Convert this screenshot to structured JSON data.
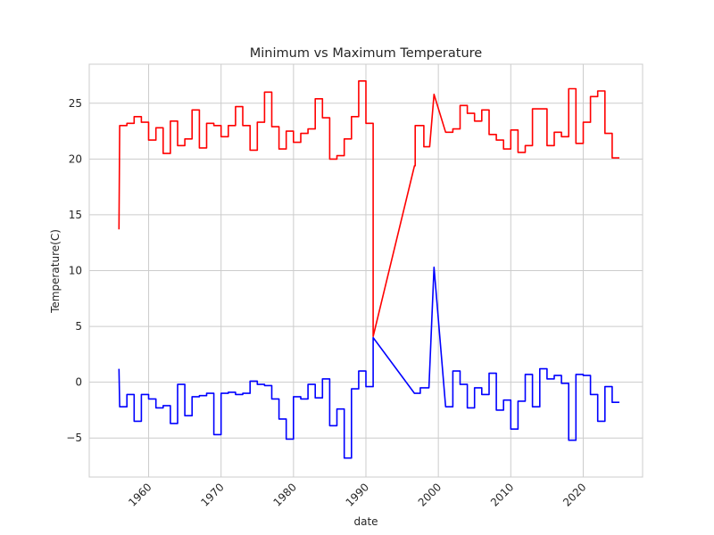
{
  "chart_data": {
    "type": "line",
    "title": "Minimum vs Maximum Temperature",
    "xlabel": "date",
    "ylabel": "Temperature(C)",
    "xlim": [
      1951.8,
      1928.2
    ],
    "ylim": [
      -8.5,
      28.5
    ],
    "xticks": [
      1960,
      1970,
      1980,
      1990,
      2000,
      2010,
      2020
    ],
    "xtick_labels": [
      "1960",
      "1970",
      "1980",
      "1990",
      "2000",
      "2010",
      "2020"
    ],
    "yticks": [
      -5,
      0,
      5,
      10,
      15,
      20,
      25
    ],
    "ytick_labels": [
      "−5",
      "0",
      "5",
      "10",
      "15",
      "20",
      "25"
    ],
    "grid": true,
    "colors": {
      "max": "#ff0000",
      "min": "#0000ff",
      "grid": "#cccccc"
    },
    "series": [
      {
        "color": "#ff0000",
        "points": [
          [
            1955.9,
            13.7
          ],
          [
            1956.0,
            23.0
          ],
          [
            1957.0,
            23.0
          ],
          [
            1957.0,
            23.2
          ],
          [
            1958.0,
            23.2
          ],
          [
            1958.0,
            23.8
          ],
          [
            1959.0,
            23.8
          ],
          [
            1959.0,
            23.3
          ],
          [
            1960.0,
            23.3
          ],
          [
            1960.0,
            21.7
          ],
          [
            1961.0,
            21.7
          ],
          [
            1961.0,
            22.8
          ],
          [
            1962.0,
            22.8
          ],
          [
            1962.0,
            20.5
          ],
          [
            1963.0,
            20.5
          ],
          [
            1963.0,
            23.4
          ],
          [
            1964.0,
            23.4
          ],
          [
            1964.0,
            21.2
          ],
          [
            1965.0,
            21.2
          ],
          [
            1965.0,
            21.8
          ],
          [
            1966.0,
            21.8
          ],
          [
            1966.0,
            24.4
          ],
          [
            1967.0,
            24.4
          ],
          [
            1967.0,
            21.0
          ],
          [
            1968.0,
            21.0
          ],
          [
            1968.0,
            23.2
          ],
          [
            1969.0,
            23.2
          ],
          [
            1969.0,
            23.0
          ],
          [
            1970.0,
            23.0
          ],
          [
            1970.0,
            22.0
          ],
          [
            1971.0,
            22.0
          ],
          [
            1971.0,
            23.0
          ],
          [
            1972.0,
            23.0
          ],
          [
            1972.0,
            24.7
          ],
          [
            1973.0,
            24.7
          ],
          [
            1973.0,
            23.0
          ],
          [
            1974.0,
            23.0
          ],
          [
            1974.0,
            20.8
          ],
          [
            1975.0,
            20.8
          ],
          [
            1975.0,
            23.3
          ],
          [
            1976.0,
            23.3
          ],
          [
            1976.0,
            26.0
          ],
          [
            1977.0,
            26.0
          ],
          [
            1977.0,
            22.9
          ],
          [
            1978.0,
            22.9
          ],
          [
            1978.0,
            20.9
          ],
          [
            1979.0,
            20.9
          ],
          [
            1979.0,
            22.5
          ],
          [
            1980.0,
            22.5
          ],
          [
            1980.0,
            21.5
          ],
          [
            1981.0,
            21.5
          ],
          [
            1981.0,
            22.3
          ],
          [
            1982.0,
            22.3
          ],
          [
            1982.0,
            22.7
          ],
          [
            1983.0,
            22.7
          ],
          [
            1983.0,
            25.4
          ],
          [
            1984.0,
            25.4
          ],
          [
            1984.0,
            23.7
          ],
          [
            1985.0,
            23.7
          ],
          [
            1985.0,
            20.0
          ],
          [
            1986.0,
            20.0
          ],
          [
            1986.0,
            20.3
          ],
          [
            1987.0,
            20.3
          ],
          [
            1987.0,
            21.8
          ],
          [
            1988.0,
            21.8
          ],
          [
            1988.0,
            23.8
          ],
          [
            1989.0,
            23.8
          ],
          [
            1989.0,
            27.0
          ],
          [
            1990.0,
            27.0
          ],
          [
            1990.0,
            23.2
          ],
          [
            1991.0,
            23.2
          ],
          [
            1991.0,
            4.1
          ],
          [
            1996.7,
            19.4
          ],
          [
            1996.8,
            19.4
          ],
          [
            1996.8,
            23.0
          ],
          [
            1998.0,
            23.0
          ],
          [
            1998.0,
            21.1
          ],
          [
            1998.8,
            21.1
          ],
          [
            1999.4,
            25.8
          ],
          [
            2001.0,
            22.4
          ],
          [
            2002.0,
            22.4
          ],
          [
            2002.0,
            22.7
          ],
          [
            2003.0,
            22.7
          ],
          [
            2003.0,
            24.8
          ],
          [
            2004.0,
            24.8
          ],
          [
            2004.0,
            24.1
          ],
          [
            2005.0,
            24.1
          ],
          [
            2005.0,
            23.4
          ],
          [
            2006.0,
            23.4
          ],
          [
            2006.0,
            24.4
          ],
          [
            2007.0,
            24.4
          ],
          [
            2007.0,
            22.2
          ],
          [
            2008.0,
            22.2
          ],
          [
            2008.0,
            21.7
          ],
          [
            2009.0,
            21.7
          ],
          [
            2009.0,
            20.9
          ],
          [
            2010.0,
            20.9
          ],
          [
            2010.0,
            22.6
          ],
          [
            2011.0,
            22.6
          ],
          [
            2011.0,
            20.6
          ],
          [
            2012.0,
            20.6
          ],
          [
            2012.0,
            21.2
          ],
          [
            2013.0,
            21.2
          ],
          [
            2013.0,
            24.5
          ],
          [
            2015.0,
            24.5
          ],
          [
            2015.0,
            21.2
          ],
          [
            2016.0,
            21.2
          ],
          [
            2016.0,
            22.4
          ],
          [
            2017.0,
            22.4
          ],
          [
            2017.0,
            22.0
          ],
          [
            2018.0,
            22.0
          ],
          [
            2018.0,
            26.3
          ],
          [
            2019.0,
            26.3
          ],
          [
            2019.0,
            21.4
          ],
          [
            2020.0,
            21.4
          ],
          [
            2020.0,
            23.3
          ],
          [
            2021.0,
            23.3
          ],
          [
            2021.0,
            25.6
          ],
          [
            2022.0,
            25.6
          ],
          [
            2022.0,
            26.1
          ],
          [
            2023.0,
            26.1
          ],
          [
            2023.0,
            22.3
          ],
          [
            2024.0,
            22.3
          ],
          [
            2024.0,
            20.1
          ],
          [
            2025.0,
            20.1
          ]
        ]
      },
      {
        "color": "#0000ff",
        "points": [
          [
            1955.9,
            1.2
          ],
          [
            1956.0,
            -2.2
          ],
          [
            1957.0,
            -2.2
          ],
          [
            1957.0,
            -1.1
          ],
          [
            1958.0,
            -1.1
          ],
          [
            1958.0,
            -3.5
          ],
          [
            1959.0,
            -3.5
          ],
          [
            1959.0,
            -1.1
          ],
          [
            1960.0,
            -1.1
          ],
          [
            1960.0,
            -1.5
          ],
          [
            1961.0,
            -1.5
          ],
          [
            1961.0,
            -2.3
          ],
          [
            1962.0,
            -2.3
          ],
          [
            1962.0,
            -2.1
          ],
          [
            1963.0,
            -2.1
          ],
          [
            1963.0,
            -3.7
          ],
          [
            1964.0,
            -3.7
          ],
          [
            1964.0,
            -0.2
          ],
          [
            1965.0,
            -0.2
          ],
          [
            1965.0,
            -3.0
          ],
          [
            1966.0,
            -3.0
          ],
          [
            1966.0,
            -1.3
          ],
          [
            1967.0,
            -1.3
          ],
          [
            1967.0,
            -1.2
          ],
          [
            1968.0,
            -1.2
          ],
          [
            1968.0,
            -1.0
          ],
          [
            1969.0,
            -1.0
          ],
          [
            1969.0,
            -4.7
          ],
          [
            1970.0,
            -4.7
          ],
          [
            1970.0,
            -1.0
          ],
          [
            1971.0,
            -1.0
          ],
          [
            1971.0,
            -0.9
          ],
          [
            1972.0,
            -0.9
          ],
          [
            1972.0,
            -1.1
          ],
          [
            1973.0,
            -1.1
          ],
          [
            1973.0,
            -1.0
          ],
          [
            1974.0,
            -1.0
          ],
          [
            1974.0,
            0.1
          ],
          [
            1975.0,
            0.1
          ],
          [
            1975.0,
            -0.2
          ],
          [
            1976.0,
            -0.2
          ],
          [
            1976.0,
            -0.3
          ],
          [
            1977.0,
            -0.3
          ],
          [
            1977.0,
            -1.5
          ],
          [
            1978.0,
            -1.5
          ],
          [
            1978.0,
            -3.3
          ],
          [
            1979.0,
            -3.3
          ],
          [
            1979.0,
            -5.1
          ],
          [
            1980.0,
            -5.1
          ],
          [
            1980.0,
            -1.3
          ],
          [
            1981.0,
            -1.3
          ],
          [
            1981.0,
            -1.5
          ],
          [
            1982.0,
            -1.5
          ],
          [
            1982.0,
            -0.2
          ],
          [
            1983.0,
            -0.2
          ],
          [
            1983.0,
            -1.4
          ],
          [
            1984.0,
            -1.4
          ],
          [
            1984.0,
            0.3
          ],
          [
            1985.0,
            0.3
          ],
          [
            1985.0,
            -3.9
          ],
          [
            1986.0,
            -3.9
          ],
          [
            1986.0,
            -2.4
          ],
          [
            1987.0,
            -2.4
          ],
          [
            1987.0,
            -6.8
          ],
          [
            1988.0,
            -6.8
          ],
          [
            1988.0,
            -0.6
          ],
          [
            1989.0,
            -0.6
          ],
          [
            1989.0,
            1.0
          ],
          [
            1990.0,
            1.0
          ],
          [
            1990.0,
            -0.4
          ],
          [
            1991.0,
            -0.4
          ],
          [
            1991.0,
            4.0
          ],
          [
            1996.7,
            -1.0
          ],
          [
            1997.5,
            -1.0
          ],
          [
            1997.5,
            -0.5
          ],
          [
            1998.7,
            -0.5
          ],
          [
            1999.4,
            10.3
          ],
          [
            2001.0,
            -2.2
          ],
          [
            2002.0,
            -2.2
          ],
          [
            2002.0,
            1.0
          ],
          [
            2003.0,
            1.0
          ],
          [
            2003.0,
            -0.2
          ],
          [
            2004.0,
            -0.2
          ],
          [
            2004.0,
            -2.3
          ],
          [
            2005.0,
            -2.3
          ],
          [
            2005.0,
            -0.5
          ],
          [
            2006.0,
            -0.5
          ],
          [
            2006.0,
            -1.1
          ],
          [
            2007.0,
            -1.1
          ],
          [
            2007.0,
            0.8
          ],
          [
            2008.0,
            0.8
          ],
          [
            2008.0,
            -2.5
          ],
          [
            2009.0,
            -2.5
          ],
          [
            2009.0,
            -1.6
          ],
          [
            2010.0,
            -1.6
          ],
          [
            2010.0,
            -4.2
          ],
          [
            2011.0,
            -4.2
          ],
          [
            2011.0,
            -1.7
          ],
          [
            2012.0,
            -1.7
          ],
          [
            2012.0,
            0.7
          ],
          [
            2013.0,
            0.7
          ],
          [
            2013.0,
            -2.2
          ],
          [
            2014.0,
            -2.2
          ],
          [
            2014.0,
            1.2
          ],
          [
            2015.0,
            1.2
          ],
          [
            2015.0,
            0.3
          ],
          [
            2016.0,
            0.3
          ],
          [
            2016.0,
            0.6
          ],
          [
            2017.0,
            0.6
          ],
          [
            2017.0,
            -0.1
          ],
          [
            2018.0,
            -0.1
          ],
          [
            2018.0,
            -5.2
          ],
          [
            2019.0,
            -5.2
          ],
          [
            2019.0,
            0.7
          ],
          [
            2020.0,
            0.7
          ],
          [
            2020.0,
            0.6
          ],
          [
            2021.0,
            0.6
          ],
          [
            2021.0,
            -1.1
          ],
          [
            2022.0,
            -1.1
          ],
          [
            2022.0,
            -3.5
          ],
          [
            2023.0,
            -3.5
          ],
          [
            2023.0,
            -0.4
          ],
          [
            2024.0,
            -0.4
          ],
          [
            2024.0,
            -1.8
          ],
          [
            2025.0,
            -1.8
          ]
        ]
      }
    ]
  }
}
